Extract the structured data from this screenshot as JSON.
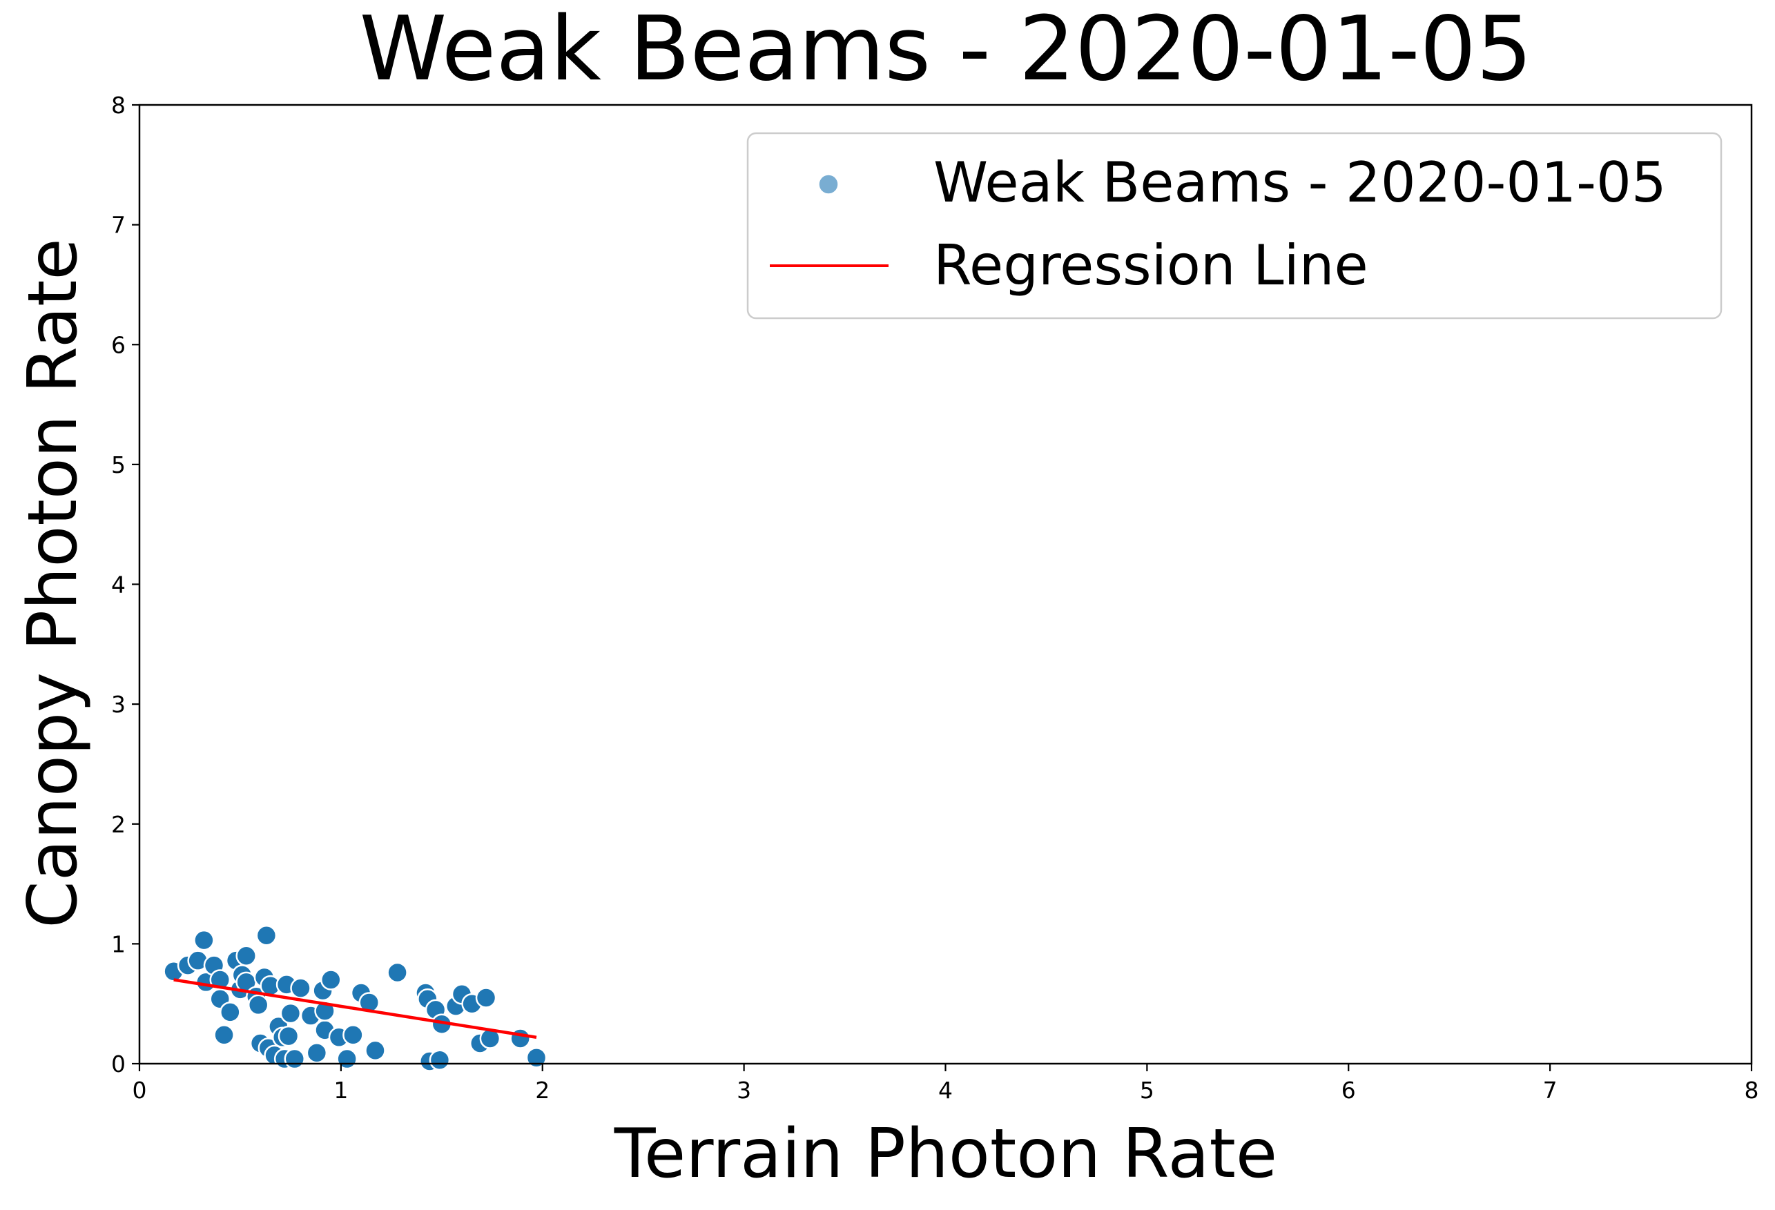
{
  "chart_data": {
    "type": "scatter",
    "title": "Weak Beams - 2020-01-05",
    "xlabel": "Terrain Photon Rate",
    "ylabel": "Canopy Photon Rate",
    "xlim": [
      0,
      8
    ],
    "ylim": [
      0,
      8
    ],
    "xticks": [
      "0",
      "1",
      "2",
      "3",
      "4",
      "5",
      "6",
      "7",
      "8"
    ],
    "yticks": [
      "0",
      "1",
      "2",
      "3",
      "4",
      "5",
      "6",
      "7",
      "8"
    ],
    "grid": false,
    "legend": {
      "placement": "top-right",
      "entries": [
        "Weak Beams - 2020-01-05",
        "Regression Line"
      ]
    },
    "colors": {
      "points": "#1f77b4",
      "point_edge": "#ffffff",
      "regression": "#ff0000"
    },
    "series": [
      {
        "name": "Weak Beams - 2020-01-05",
        "kind": "scatter",
        "points": [
          [
            0.17,
            0.77
          ],
          [
            0.24,
            0.82
          ],
          [
            0.29,
            0.86
          ],
          [
            0.32,
            1.03
          ],
          [
            0.33,
            0.68
          ],
          [
            0.37,
            0.82
          ],
          [
            0.4,
            0.7
          ],
          [
            0.4,
            0.54
          ],
          [
            0.42,
            0.24
          ],
          [
            0.45,
            0.43
          ],
          [
            0.48,
            0.86
          ],
          [
            0.5,
            0.62
          ],
          [
            0.51,
            0.74
          ],
          [
            0.53,
            0.9
          ],
          [
            0.53,
            0.68
          ],
          [
            0.58,
            0.56
          ],
          [
            0.59,
            0.49
          ],
          [
            0.6,
            0.17
          ],
          [
            0.62,
            0.72
          ],
          [
            0.63,
            1.07
          ],
          [
            0.64,
            0.13
          ],
          [
            0.65,
            0.65
          ],
          [
            0.67,
            0.07
          ],
          [
            0.69,
            0.31
          ],
          [
            0.71,
            0.22
          ],
          [
            0.72,
            0.04
          ],
          [
            0.73,
            0.66
          ],
          [
            0.74,
            0.23
          ],
          [
            0.75,
            0.42
          ],
          [
            0.77,
            0.04
          ],
          [
            0.8,
            0.63
          ],
          [
            0.85,
            0.4
          ],
          [
            0.88,
            0.09
          ],
          [
            0.91,
            0.61
          ],
          [
            0.92,
            0.28
          ],
          [
            0.92,
            0.44
          ],
          [
            0.95,
            0.7
          ],
          [
            0.99,
            0.22
          ],
          [
            1.03,
            0.04
          ],
          [
            1.06,
            0.24
          ],
          [
            1.1,
            0.59
          ],
          [
            1.14,
            0.51
          ],
          [
            1.17,
            0.11
          ],
          [
            1.28,
            0.76
          ],
          [
            1.42,
            0.59
          ],
          [
            1.43,
            0.54
          ],
          [
            1.44,
            0.02
          ],
          [
            1.47,
            0.45
          ],
          [
            1.49,
            0.03
          ],
          [
            1.5,
            0.33
          ],
          [
            1.57,
            0.48
          ],
          [
            1.6,
            0.58
          ],
          [
            1.65,
            0.5
          ],
          [
            1.69,
            0.17
          ],
          [
            1.72,
            0.55
          ],
          [
            1.74,
            0.21
          ],
          [
            1.89,
            0.21
          ],
          [
            1.97,
            0.05
          ]
        ]
      },
      {
        "name": "Regression Line",
        "kind": "line",
        "points": [
          [
            0.17,
            0.7
          ],
          [
            1.97,
            0.22
          ]
        ]
      }
    ]
  }
}
